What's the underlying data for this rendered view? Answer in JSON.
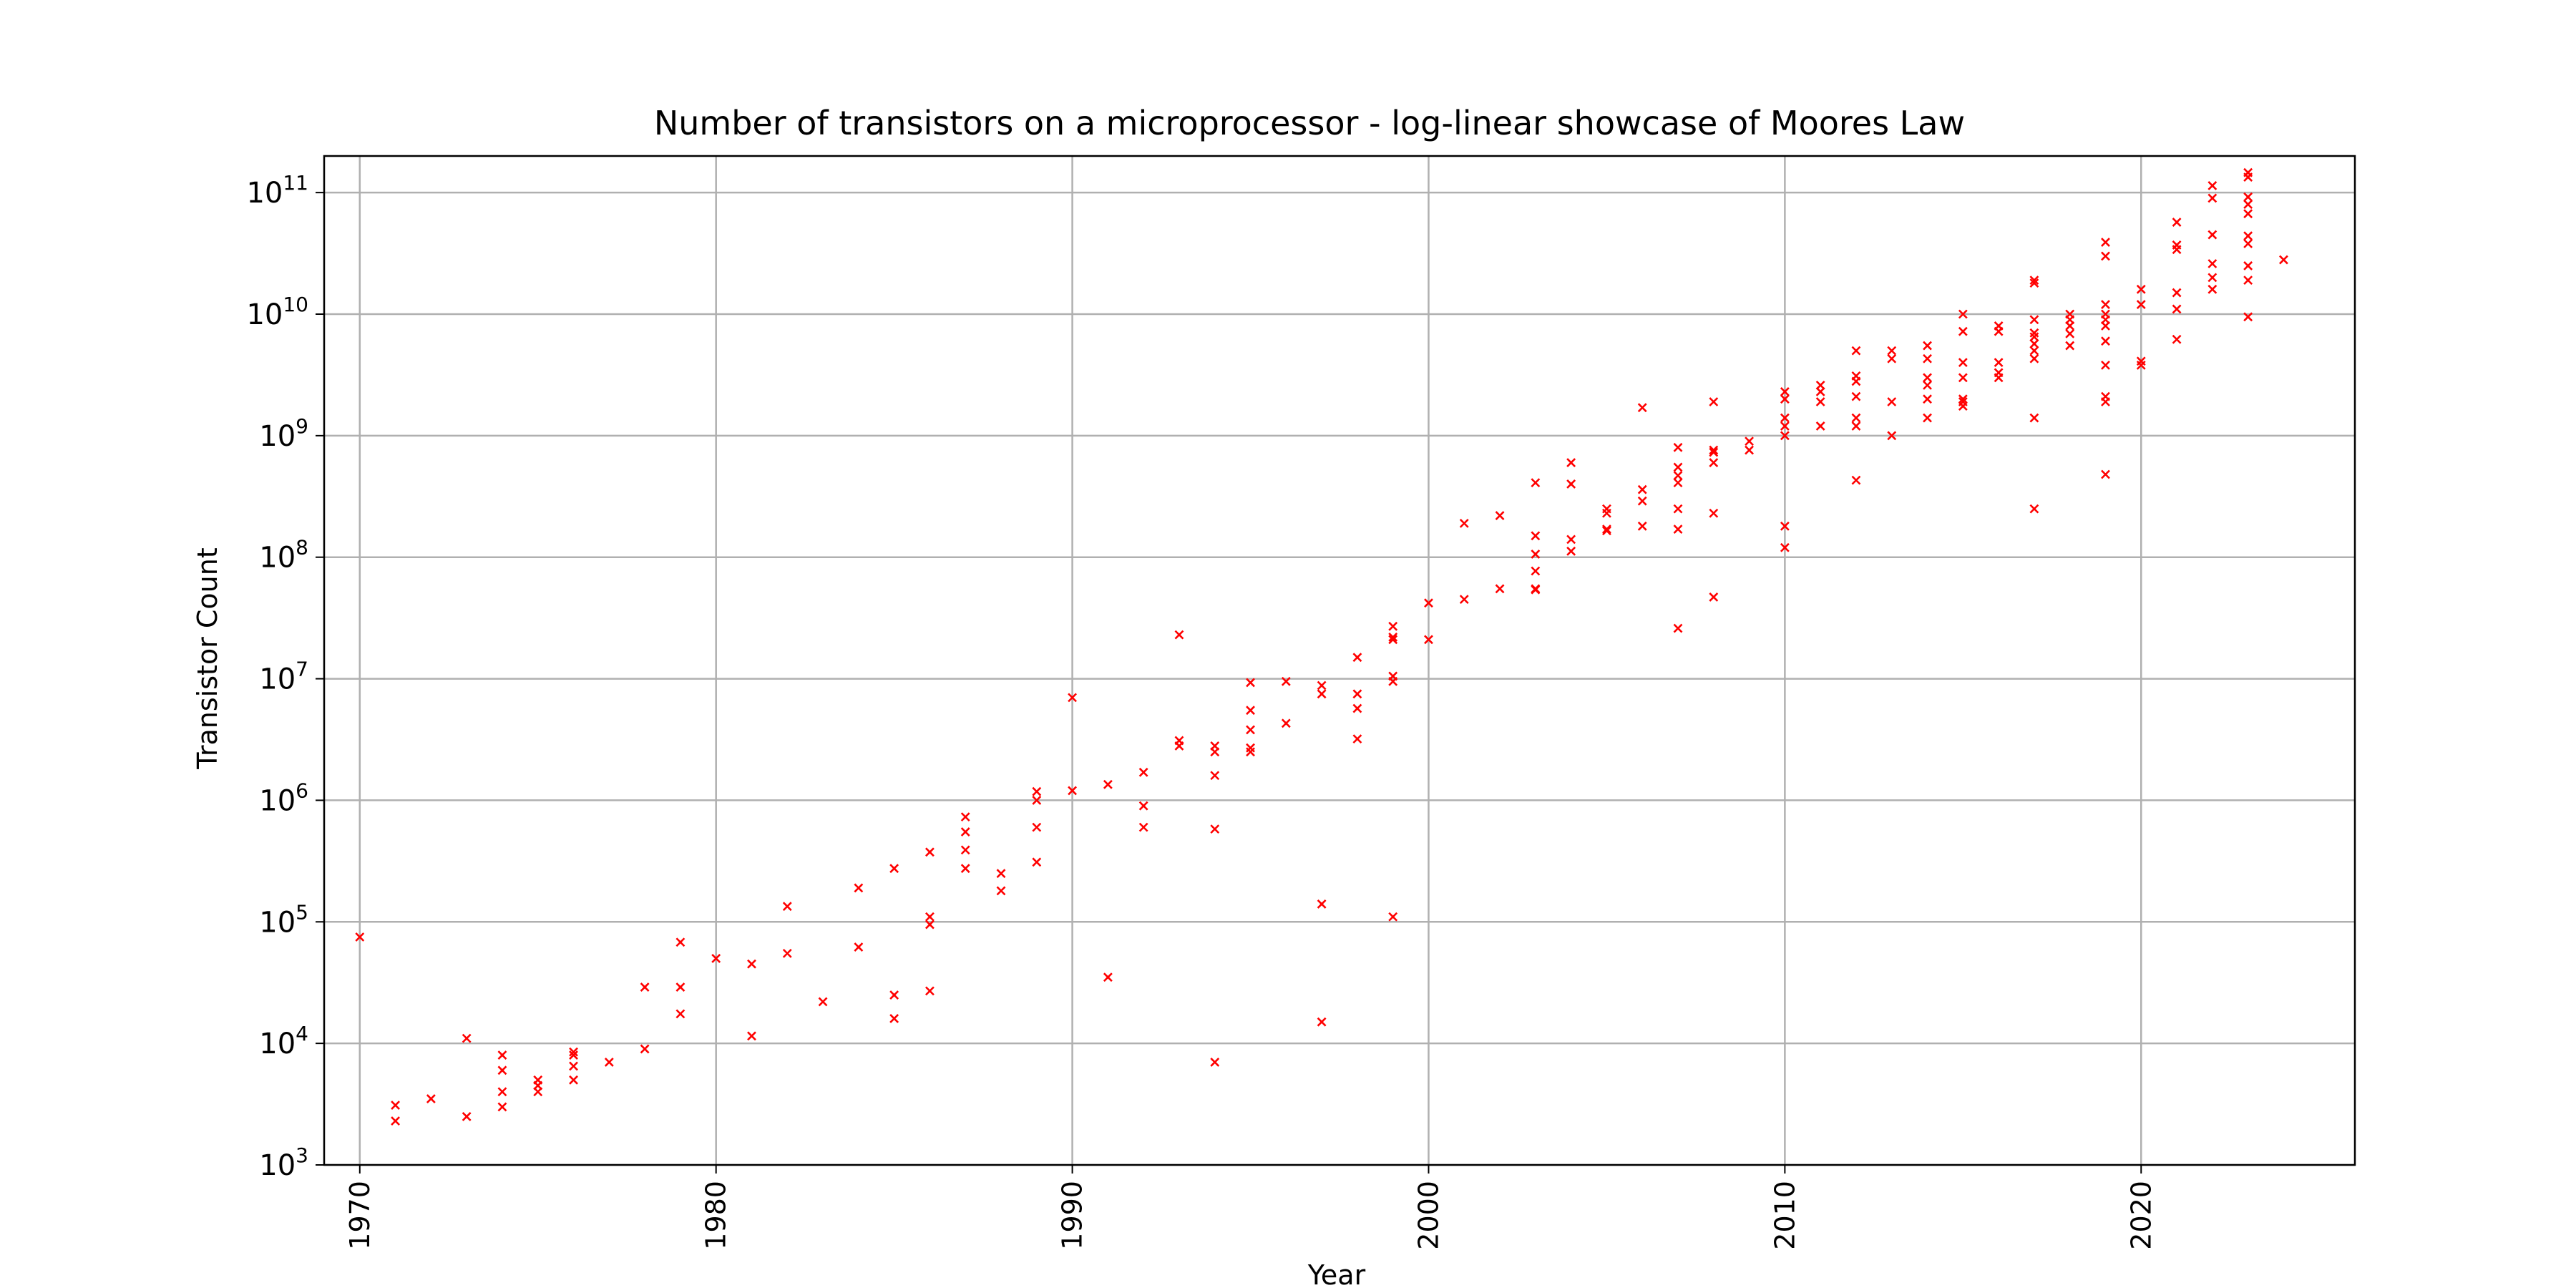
{
  "colors": {
    "marker": "#ff0000",
    "grid": "#b0b0b0",
    "axes": "#000000",
    "background": "#ffffff"
  },
  "chart_data": {
    "type": "scatter",
    "title": "Number of transistors on a microprocessor - log-linear showcase of Moores Law",
    "xlabel": "Year",
    "ylabel": "Transistor Count",
    "xlim": [
      1969,
      2026
    ],
    "ylim": [
      1000,
      200000000000
    ],
    "yscale": "log",
    "grid": true,
    "marker": "x",
    "xticks": [
      1970,
      1980,
      1990,
      2000,
      2010,
      2020
    ],
    "yticks": [
      {
        "value": 1000,
        "base": "10",
        "exp": "3"
      },
      {
        "value": 10000,
        "base": "10",
        "exp": "4"
      },
      {
        "value": 100000,
        "base": "10",
        "exp": "5"
      },
      {
        "value": 1000000,
        "base": "10",
        "exp": "6"
      },
      {
        "value": 10000000,
        "base": "10",
        "exp": "7"
      },
      {
        "value": 100000000,
        "base": "10",
        "exp": "8"
      },
      {
        "value": 1000000000,
        "base": "10",
        "exp": "9"
      },
      {
        "value": 10000000000,
        "base": "10",
        "exp": "10"
      },
      {
        "value": 100000000000,
        "base": "10",
        "exp": "11"
      }
    ],
    "points": [
      [
        1970,
        75000
      ],
      [
        1971,
        3100
      ],
      [
        1971,
        2300
      ],
      [
        1972,
        3500
      ],
      [
        1973,
        11000
      ],
      [
        1973,
        2500
      ],
      [
        1974,
        8000
      ],
      [
        1974,
        6000
      ],
      [
        1974,
        4000
      ],
      [
        1974,
        3000
      ],
      [
        1975,
        5000
      ],
      [
        1975,
        4500
      ],
      [
        1975,
        4000
      ],
      [
        1976,
        8500
      ],
      [
        1976,
        8000
      ],
      [
        1976,
        6500
      ],
      [
        1976,
        5000
      ],
      [
        1977,
        7000
      ],
      [
        1978,
        29000
      ],
      [
        1978,
        9000
      ],
      [
        1979,
        68000
      ],
      [
        1979,
        29000
      ],
      [
        1979,
        17500
      ],
      [
        1980,
        50000
      ],
      [
        1981,
        45000
      ],
      [
        1981,
        11500
      ],
      [
        1982,
        134000
      ],
      [
        1982,
        55000
      ],
      [
        1983,
        22000
      ],
      [
        1984,
        190000
      ],
      [
        1984,
        62000
      ],
      [
        1985,
        275000
      ],
      [
        1985,
        25000
      ],
      [
        1985,
        16000
      ],
      [
        1986,
        375000
      ],
      [
        1986,
        110000
      ],
      [
        1986,
        95000
      ],
      [
        1986,
        27000
      ],
      [
        1987,
        730000
      ],
      [
        1987,
        550000
      ],
      [
        1987,
        390000
      ],
      [
        1987,
        275000
      ],
      [
        1988,
        250000
      ],
      [
        1988,
        180000
      ],
      [
        1989,
        1180000
      ],
      [
        1989,
        1000000
      ],
      [
        1989,
        600000
      ],
      [
        1989,
        310000
      ],
      [
        1990,
        7000000
      ],
      [
        1990,
        1200000
      ],
      [
        1991,
        1350000
      ],
      [
        1991,
        35000
      ],
      [
        1992,
        1700000
      ],
      [
        1992,
        900000
      ],
      [
        1992,
        600000
      ],
      [
        1993,
        23000000
      ],
      [
        1993,
        3100000
      ],
      [
        1993,
        2800000
      ],
      [
        1994,
        2800000
      ],
      [
        1994,
        2500000
      ],
      [
        1994,
        1600000
      ],
      [
        1994,
        580000
      ],
      [
        1994,
        7000
      ],
      [
        1995,
        9300000
      ],
      [
        1995,
        5500000
      ],
      [
        1995,
        3800000
      ],
      [
        1995,
        2700000
      ],
      [
        1995,
        2500000
      ],
      [
        1996,
        9500000
      ],
      [
        1996,
        4300000
      ],
      [
        1997,
        8800000
      ],
      [
        1997,
        7500000
      ],
      [
        1997,
        140000
      ],
      [
        1997,
        15000
      ],
      [
        1998,
        15000000
      ],
      [
        1998,
        7500000
      ],
      [
        1998,
        5700000
      ],
      [
        1998,
        3200000
      ],
      [
        1999,
        27000000
      ],
      [
        1999,
        22000000
      ],
      [
        1999,
        21000000
      ],
      [
        1999,
        10500000
      ],
      [
        1999,
        9500000
      ],
      [
        1999,
        110000
      ],
      [
        2000,
        42000000
      ],
      [
        2000,
        21000000
      ],
      [
        2001,
        190000000
      ],
      [
        2001,
        45000000
      ],
      [
        2002,
        220000000
      ],
      [
        2002,
        55000000
      ],
      [
        2003,
        410000000
      ],
      [
        2003,
        150000000
      ],
      [
        2003,
        106000000
      ],
      [
        2003,
        77000000
      ],
      [
        2003,
        55000000
      ],
      [
        2003,
        54000000
      ],
      [
        2004,
        600000000
      ],
      [
        2004,
        400000000
      ],
      [
        2004,
        140000000
      ],
      [
        2004,
        112000000
      ],
      [
        2005,
        250000000
      ],
      [
        2005,
        230000000
      ],
      [
        2005,
        170000000
      ],
      [
        2005,
        165000000
      ],
      [
        2006,
        1700000000
      ],
      [
        2006,
        360000000
      ],
      [
        2006,
        290000000
      ],
      [
        2006,
        180000000
      ],
      [
        2007,
        800000000
      ],
      [
        2007,
        550000000
      ],
      [
        2007,
        470000000
      ],
      [
        2007,
        410000000
      ],
      [
        2007,
        250000000
      ],
      [
        2007,
        170000000
      ],
      [
        2007,
        26000000
      ],
      [
        2008,
        1900000000
      ],
      [
        2008,
        760000000
      ],
      [
        2008,
        730000000
      ],
      [
        2008,
        600000000
      ],
      [
        2008,
        230000000
      ],
      [
        2008,
        47000000
      ],
      [
        2009,
        900000000
      ],
      [
        2009,
        760000000
      ],
      [
        2010,
        2300000000
      ],
      [
        2010,
        2000000000
      ],
      [
        2010,
        1400000000
      ],
      [
        2010,
        1200000000
      ],
      [
        2010,
        1000000000
      ],
      [
        2010,
        180000000
      ],
      [
        2010,
        120000000
      ],
      [
        2011,
        2600000000
      ],
      [
        2011,
        2300000000
      ],
      [
        2011,
        1900000000
      ],
      [
        2011,
        1200000000
      ],
      [
        2012,
        5000000000
      ],
      [
        2012,
        3100000000
      ],
      [
        2012,
        2800000000
      ],
      [
        2012,
        2100000000
      ],
      [
        2012,
        1400000000
      ],
      [
        2012,
        1200000000
      ],
      [
        2012,
        430000000
      ],
      [
        2013,
        5000000000
      ],
      [
        2013,
        4300000000
      ],
      [
        2013,
        1900000000
      ],
      [
        2013,
        1000000000
      ],
      [
        2014,
        5500000000
      ],
      [
        2014,
        4300000000
      ],
      [
        2014,
        3000000000
      ],
      [
        2014,
        2600000000
      ],
      [
        2014,
        2000000000
      ],
      [
        2014,
        1400000000
      ],
      [
        2015,
        10000000000
      ],
      [
        2015,
        7200000000
      ],
      [
        2015,
        4000000000
      ],
      [
        2015,
        3000000000
      ],
      [
        2015,
        2000000000
      ],
      [
        2015,
        1900000000
      ],
      [
        2015,
        1750000000
      ],
      [
        2016,
        8000000000
      ],
      [
        2016,
        7200000000
      ],
      [
        2016,
        4000000000
      ],
      [
        2016,
        3300000000
      ],
      [
        2016,
        3000000000
      ],
      [
        2017,
        19000000000
      ],
      [
        2017,
        18000000000
      ],
      [
        2017,
        9000000000
      ],
      [
        2017,
        7000000000
      ],
      [
        2017,
        6500000000
      ],
      [
        2017,
        5700000000
      ],
      [
        2017,
        5000000000
      ],
      [
        2017,
        4300000000
      ],
      [
        2017,
        1400000000
      ],
      [
        2017,
        250000000
      ],
      [
        2018,
        10000000000
      ],
      [
        2018,
        9000000000
      ],
      [
        2018,
        8000000000
      ],
      [
        2018,
        6900000000
      ],
      [
        2018,
        5500000000
      ],
      [
        2019,
        39000000000
      ],
      [
        2019,
        30000000000
      ],
      [
        2019,
        12000000000
      ],
      [
        2019,
        10000000000
      ],
      [
        2019,
        9000000000
      ],
      [
        2019,
        8000000000
      ],
      [
        2019,
        6000000000
      ],
      [
        2019,
        3800000000
      ],
      [
        2019,
        2100000000
      ],
      [
        2019,
        1900000000
      ],
      [
        2019,
        480000000
      ],
      [
        2020,
        16000000000
      ],
      [
        2020,
        12000000000
      ],
      [
        2020,
        4100000000
      ],
      [
        2020,
        3800000000
      ],
      [
        2021,
        57000000000
      ],
      [
        2021,
        37000000000
      ],
      [
        2021,
        34000000000
      ],
      [
        2021,
        15000000000
      ],
      [
        2021,
        11000000000
      ],
      [
        2021,
        6200000000
      ],
      [
        2022,
        114000000000
      ],
      [
        2022,
        90000000000
      ],
      [
        2022,
        45000000000
      ],
      [
        2022,
        26000000000
      ],
      [
        2022,
        20000000000
      ],
      [
        2022,
        16000000000
      ],
      [
        2023,
        146000000000
      ],
      [
        2023,
        134000000000
      ],
      [
        2023,
        92000000000
      ],
      [
        2023,
        80000000000
      ],
      [
        2023,
        67000000000
      ],
      [
        2023,
        44000000000
      ],
      [
        2023,
        38000000000
      ],
      [
        2023,
        25000000000
      ],
      [
        2023,
        19000000000
      ],
      [
        2023,
        9500000000
      ],
      [
        2024,
        28000000000
      ]
    ]
  }
}
